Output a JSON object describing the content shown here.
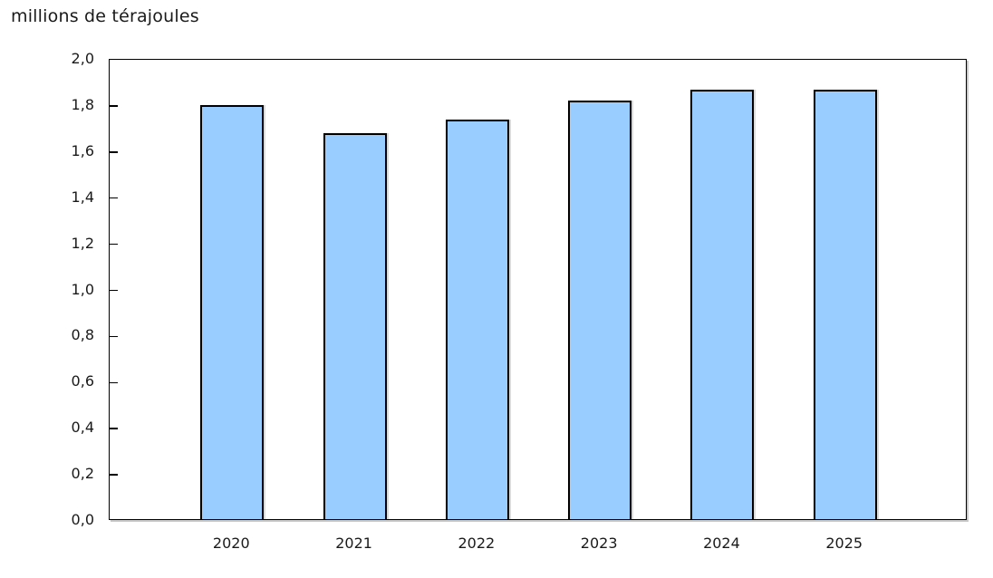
{
  "chart_data": {
    "type": "bar",
    "title": "millions de térajoules",
    "categories": [
      "2020",
      "2021",
      "2022",
      "2023",
      "2024",
      "2025"
    ],
    "values": [
      1.8,
      1.68,
      1.74,
      1.82,
      1.87,
      1.87
    ],
    "xlabel": "",
    "ylabel": "millions de térajoules",
    "ylim": [
      0.0,
      2.0
    ],
    "ytick_step": 0.2,
    "ytick_labels": [
      "0,0",
      "0,2",
      "0,4",
      "0,6",
      "0,8",
      "1,0",
      "1,2",
      "1,4",
      "1,6",
      "1,8",
      "2,0"
    ],
    "decimal_separator": ",",
    "grid": false,
    "legend_position": "none",
    "bar_fill_color": "#99CCFF",
    "bar_border_color": "#000000",
    "frame_color": "#000000",
    "background_color": "#FFFFFF",
    "text_color": "#1A1A1A"
  }
}
